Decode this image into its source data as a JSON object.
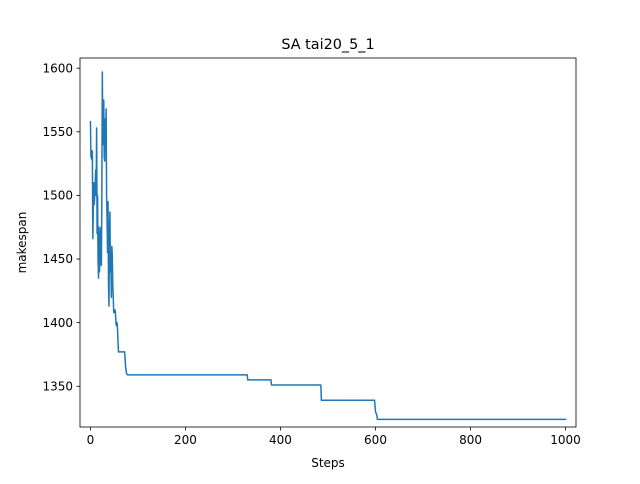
{
  "chart_data": {
    "type": "line",
    "title": "SA tai20_5_1",
    "xlabel": "Steps",
    "ylabel": "makespan",
    "xlim": [
      -22,
      1022
    ],
    "ylim": [
      1318,
      1608
    ],
    "x_ticks": [
      0,
      200,
      400,
      600,
      800,
      1000
    ],
    "y_ticks": [
      1350,
      1400,
      1450,
      1500,
      1550,
      1600
    ],
    "grid": false,
    "legend": null,
    "series": [
      {
        "color": "#1f77b4",
        "x": [
          0,
          1,
          2,
          3,
          4,
          5,
          6,
          7,
          8,
          9,
          10,
          11,
          12,
          13,
          14,
          15,
          16,
          17,
          18,
          19,
          20,
          21,
          22,
          23,
          24,
          25,
          26,
          27,
          28,
          29,
          30,
          31,
          32,
          33,
          34,
          35,
          36,
          37,
          38,
          39,
          40,
          41,
          42,
          43,
          44,
          45,
          46,
          47,
          48,
          49,
          50,
          51,
          52,
          53,
          54,
          55,
          56,
          57,
          58,
          59,
          60,
          62,
          64,
          66,
          68,
          70,
          72,
          74,
          76,
          78,
          80,
          330,
          331,
          380,
          381,
          485,
          486,
          598,
          600,
          601,
          603,
          604,
          1000
        ],
        "y": [
          1558,
          1530,
          1535,
          1528,
          1535,
          1466,
          1490,
          1510,
          1493,
          1500,
          1510,
          1520,
          1500,
          1553,
          1470,
          1500,
          1450,
          1435,
          1475,
          1440,
          1450,
          1470,
          1475,
          1445,
          1500,
          1597,
          1540,
          1560,
          1575,
          1530,
          1527,
          1560,
          1545,
          1568,
          1500,
          1480,
          1455,
          1495,
          1430,
          1413,
          1470,
          1487,
          1440,
          1450,
          1420,
          1460,
          1452,
          1430,
          1420,
          1408,
          1410,
          1408,
          1410,
          1405,
          1398,
          1400,
          1400,
          1395,
          1385,
          1377,
          1377,
          1377,
          1377,
          1377,
          1377,
          1377,
          1377,
          1365,
          1360,
          1359,
          1359,
          1359,
          1355,
          1355,
          1351,
          1351,
          1339,
          1339,
          1330,
          1329,
          1327,
          1324,
          1324
        ]
      }
    ]
  }
}
